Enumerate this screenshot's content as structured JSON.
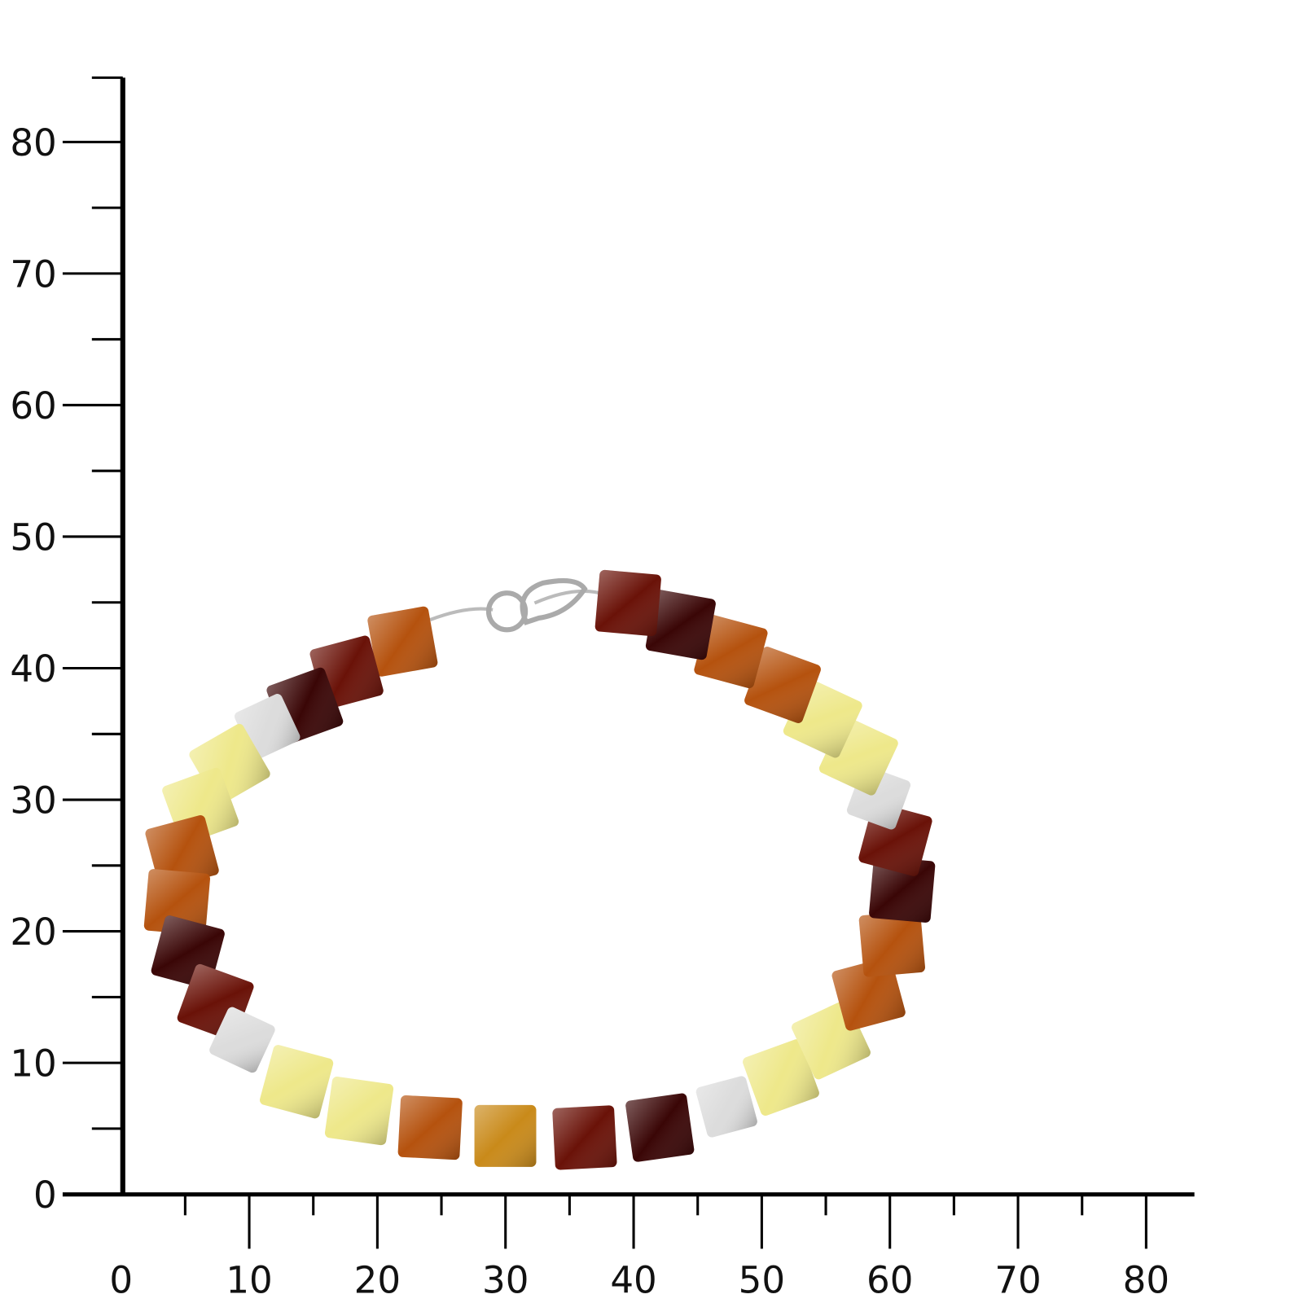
{
  "scale": {
    "x_labels": [
      "0",
      "10",
      "20",
      "30",
      "40",
      "50",
      "60",
      "70",
      "80"
    ],
    "y_labels": [
      "0",
      "10",
      "20",
      "30",
      "40",
      "50",
      "60",
      "70",
      "80"
    ]
  }
}
